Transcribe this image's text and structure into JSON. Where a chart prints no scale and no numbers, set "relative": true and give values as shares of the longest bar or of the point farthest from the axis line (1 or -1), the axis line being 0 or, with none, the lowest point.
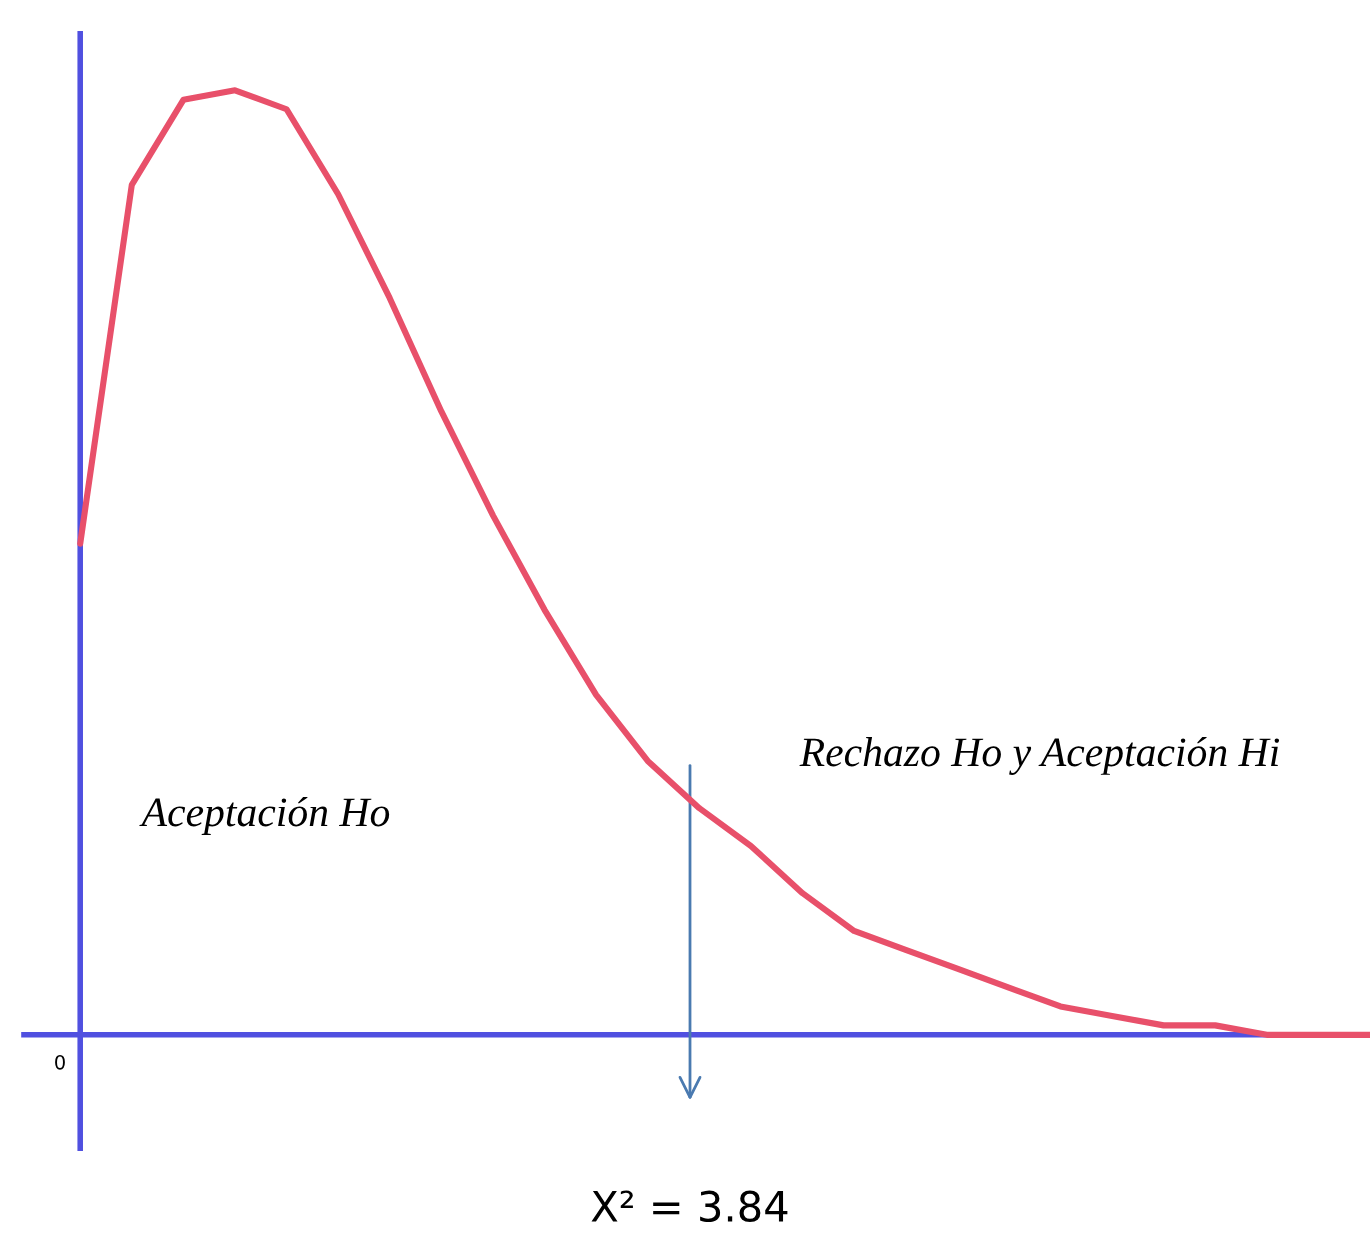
{
  "chart_data": {
    "type": "line",
    "relative": true,
    "categories": [
      null,
      null,
      null,
      null,
      null,
      null,
      null,
      null,
      null,
      null,
      null,
      null,
      null,
      null,
      null,
      null,
      null,
      null,
      null,
      null,
      null,
      null,
      null,
      null,
      null,
      null
    ],
    "series": [
      {
        "color": "#e8506a",
        "values": [
          0.52,
          0.9,
          0.99,
          1.0,
          0.98,
          0.89,
          0.78,
          0.66,
          0.55,
          0.45,
          0.36,
          0.29,
          0.24,
          0.2,
          0.15,
          0.11,
          0.09,
          0.07,
          0.05,
          0.03,
          0.02,
          0.01,
          0.01,
          0.0,
          0.0,
          0.0
        ]
      }
    ],
    "annotations": [
      "0",
      "Aceptación Ho",
      "Rechazo Ho y Aceptación Hi",
      "X² = 3.84"
    ],
    "marker": "none",
    "line_style": "solid"
  }
}
